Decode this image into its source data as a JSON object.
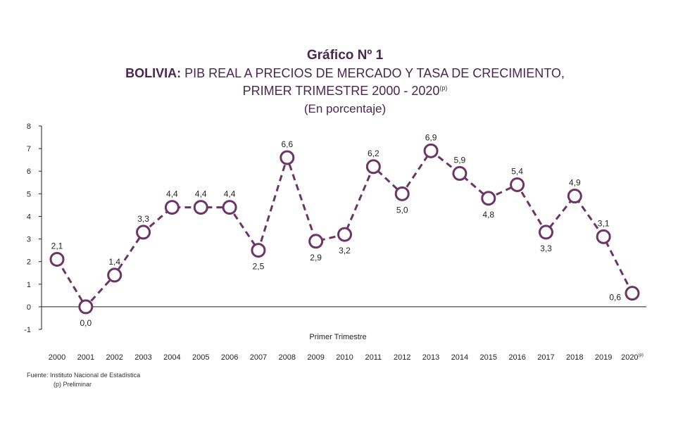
{
  "title": {
    "label": "Gráfico Nº 1",
    "line1_bold": "BOLIVIA:",
    "line1_rest": "PIB REAL A PRECIOS DE MERCADO Y TASA DE CRECIMIENTO,",
    "line2": "PRIMER TRIMESTRE 2000 - 2020",
    "line2_sup": "(p)",
    "line3": "(En porcentaje)"
  },
  "footer": {
    "source": "Fuente: Instituto Nacional de Estadística",
    "note": "(p) Preliminar"
  },
  "colors": {
    "series": "#6b3566",
    "marker_fill": "#ffffff",
    "axis": "#231f20"
  },
  "chart_data": {
    "type": "line",
    "xlabel": "Primer Trimestre",
    "ylabel": "",
    "ylim": [
      -1,
      8
    ],
    "yticks": [
      "-1",
      "0",
      "1",
      "2",
      "3",
      "4",
      "5",
      "6",
      "7",
      "8"
    ],
    "x": [
      "2000",
      "2001",
      "2002",
      "2003",
      "2004",
      "2005",
      "2006",
      "2007",
      "2008",
      "2009",
      "2010",
      "2011",
      "2012",
      "2013",
      "2014",
      "2015",
      "2016",
      "2017",
      "2018",
      "2019",
      "2020"
    ],
    "x_last_superscript": "(p)",
    "series": [
      {
        "values": [
          2.1,
          0.0,
          1.4,
          3.3,
          4.4,
          4.4,
          4.4,
          2.5,
          6.6,
          2.9,
          3.2,
          6.2,
          5.0,
          6.9,
          5.9,
          4.8,
          5.4,
          3.3,
          4.9,
          3.1,
          0.6
        ],
        "data_labels": [
          "2,1",
          "0,0",
          "1,4",
          "3,3",
          "4,4",
          "4,4",
          "4,4",
          "2,5",
          "6,6",
          "2,9",
          "3,2",
          "6,2",
          "5,0",
          "6,9",
          "5,9",
          "4,8",
          "5,4",
          "3,3",
          "4,9",
          "3,1",
          "0,6"
        ],
        "line_style": "dashed",
        "marker": "open-circle"
      }
    ],
    "grid": false,
    "legend": "none"
  }
}
